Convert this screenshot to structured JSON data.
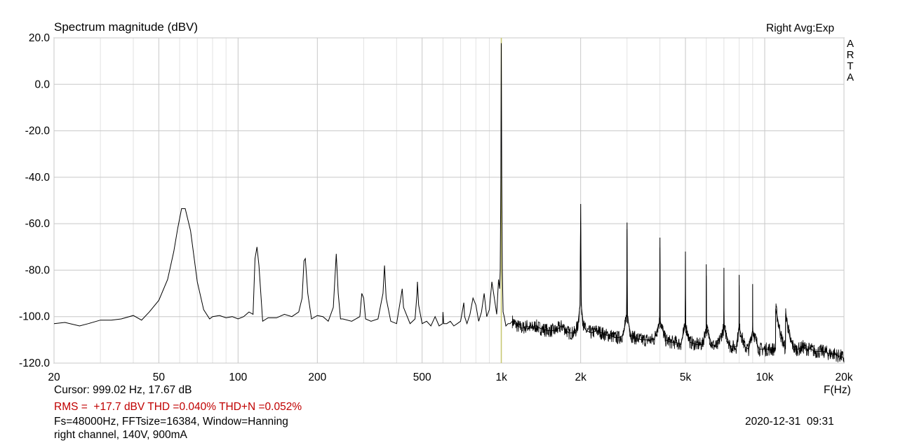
{
  "header": {
    "title": "Spectrum magnitude (dBV)",
    "mode": "Right Avg:Exp",
    "brand": [
      "A",
      "R",
      "T",
      "A"
    ]
  },
  "footer": {
    "cursor": "Cursor: 999.02 Hz, 17.67 dB",
    "stats": "RMS =  +17.7 dBV THD =0.040% THD+N =0.052%",
    "settings": "Fs=48000Hz, FFTsize=16384, Window=Hanning",
    "note": "right channel, 140V, 900mA",
    "timestamp": "2020-12-31  09:31"
  },
  "colors": {
    "trace": "#000000",
    "grid": "#c8c8c8",
    "cursor": "#c8c870",
    "stats_text": "#c00000"
  },
  "chart_data": {
    "type": "line",
    "title": "Spectrum magnitude (dBV)",
    "xlabel": "F(Hz)",
    "ylabel": "",
    "xscale": "log",
    "xlim": [
      20,
      20000
    ],
    "ylim": [
      -120,
      20
    ],
    "y_ticks": [
      20,
      0,
      -20,
      -40,
      -60,
      -80,
      -100,
      -120
    ],
    "y_tick_labels": [
      "20.0",
      "0.0",
      "-20.0",
      "-40.0",
      "-60.0",
      "-80.0",
      "-100.0",
      "-120.0"
    ],
    "x_ticks": [
      20,
      50,
      100,
      200,
      500,
      1000,
      2000,
      5000,
      10000,
      20000
    ],
    "x_tick_labels": [
      "20",
      "50",
      "100",
      "200",
      "500",
      "1k",
      "2k",
      "5k",
      "10k",
      "20k"
    ],
    "grid": true,
    "cursor": {
      "x": 999.02,
      "y": 17.67
    },
    "series": [
      {
        "x": [
          20,
          22,
          25,
          27,
          30,
          33,
          36,
          40,
          43,
          46,
          50,
          54,
          57,
          59,
          61,
          63,
          66,
          70,
          74,
          78,
          80,
          85,
          90,
          95,
          100,
          105,
          110,
          114,
          116,
          118,
          120,
          124,
          130,
          140,
          150,
          160,
          170,
          175,
          178,
          180,
          184,
          190,
          200,
          210,
          220,
          230,
          236,
          240,
          245,
          250,
          270,
          290,
          295,
          300,
          305,
          320,
          340,
          355,
          360,
          365,
          380,
          400,
          415,
          420,
          425,
          450,
          470,
          478,
          480,
          485,
          500,
          520,
          540,
          560,
          580,
          598,
          600,
          604,
          620,
          640,
          660,
          680,
          700,
          715,
          720,
          725,
          740,
          760,
          780,
          800,
          820,
          840,
          860,
          880,
          900,
          920,
          940,
          960,
          975,
          985,
          990,
          995,
          999,
          1003,
          1008,
          1015,
          1025,
          1040,
          1060,
          1080,
          1100,
          1150,
          1200,
          1250,
          1300,
          1350,
          1400,
          1500,
          1600,
          1700,
          1800,
          1900,
          1950,
          1990,
          2000,
          2010,
          2050,
          2100,
          2200,
          2300,
          2400,
          2500,
          2600,
          2700,
          2800,
          2900,
          2990,
          3000,
          3010,
          3100,
          3200,
          3400,
          3600,
          3800,
          3990,
          4000,
          4010,
          4200,
          4400,
          4600,
          4800,
          4990,
          5000,
          5010,
          5200,
          5500,
          5800,
          5990,
          6000,
          6010,
          6300,
          6600,
          6990,
          7000,
          7010,
          7400,
          7800,
          7990,
          8000,
          8010,
          8400,
          8700,
          8990,
          9000,
          9010,
          9500,
          10000,
          10500,
          10990,
          11000,
          11010,
          11500,
          11990,
          12000,
          12010,
          12500,
          13000,
          13500,
          14000,
          14500,
          15000,
          15500,
          16000,
          16500,
          17000,
          17500,
          18000,
          18500,
          19000,
          19500,
          20000
        ],
        "y": [
          -103,
          -102.5,
          -104,
          -103,
          -101.5,
          -101.5,
          -101,
          -99.5,
          -101.5,
          -98,
          -93,
          -84,
          -72,
          -62,
          -53.5,
          -53.5,
          -63,
          -85,
          -97,
          -101,
          -100,
          -99.5,
          -100.5,
          -100,
          -101,
          -100,
          -98,
          -99,
          -75,
          -70,
          -78,
          -102,
          -100.5,
          -100.5,
          -99,
          -100,
          -98,
          -92,
          -76,
          -75,
          -90,
          -101,
          -99.5,
          -100,
          -102,
          -96,
          -73,
          -90,
          -101,
          -101,
          -102,
          -100,
          -90,
          -92,
          -101,
          -102,
          -101,
          -90,
          -78,
          -92,
          -102,
          -103,
          -92,
          -88,
          -96,
          -103,
          -101,
          -90,
          -85,
          -95,
          -103,
          -102,
          -104,
          -100,
          -104,
          -103,
          -98,
          -103,
          -103,
          -102,
          -104,
          -103,
          -102,
          -96,
          -94,
          -100,
          -103,
          -99,
          -92,
          -95,
          -102,
          -98,
          -90,
          -100,
          -97,
          -85,
          -92,
          -99,
          -84,
          -88,
          -80,
          -40,
          17.7,
          -40,
          -80,
          -98,
          -100,
          -104,
          -103,
          -103,
          -102,
          -104,
          -105,
          -104,
          -105,
          -104,
          -105,
          -106,
          -106,
          -104,
          -107,
          -107,
          -104,
          -95,
          -51.5,
          -95,
          -104,
          -106,
          -107,
          -106,
          -107,
          -108,
          -108,
          -109,
          -109,
          -108,
          -100,
          -59.5,
          -100,
          -108,
          -109,
          -110,
          -110,
          -110,
          -102,
          -66,
          -102,
          -110,
          -111,
          -111,
          -112,
          -104,
          -72,
          -104,
          -111,
          -112,
          -112,
          -105,
          -77.5,
          -105,
          -112,
          -113,
          -105,
          -79,
          -105,
          -113,
          -113,
          -105,
          -82,
          -105,
          -113,
          -114,
          -106,
          -86,
          -106,
          -114,
          -114,
          -114,
          -114,
          -108,
          -96.5,
          -108,
          -114,
          -110,
          -98.5,
          -110,
          -114,
          -114,
          -113,
          -114,
          -114,
          -115,
          -115,
          -115,
          -115,
          -116,
          -116,
          -116,
          -117,
          -117,
          -118
        ]
      }
    ]
  }
}
